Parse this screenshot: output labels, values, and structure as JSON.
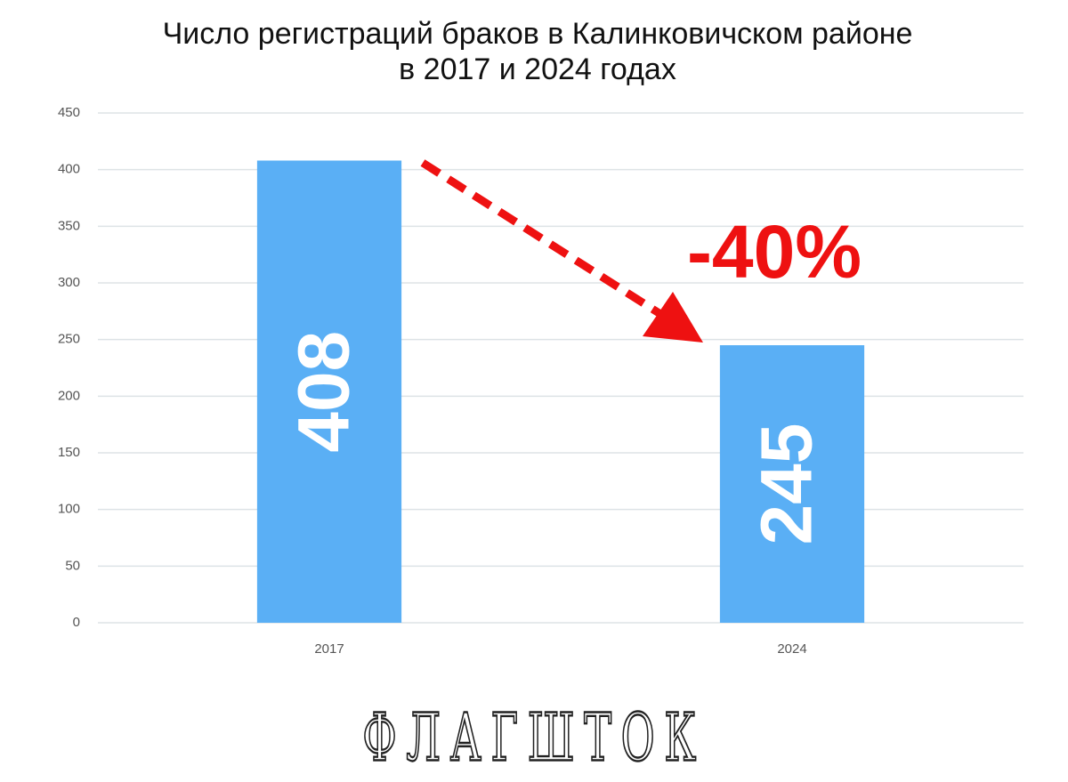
{
  "chart_data": {
    "type": "bar",
    "title": [
      "Число регистраций браков в Калинковичском районе",
      "в 2017 и 2024 годах"
    ],
    "categories": [
      "2017",
      "2024"
    ],
    "values": [
      408,
      245
    ],
    "color": "#5aaff5",
    "ylim": [
      0,
      450
    ],
    "yticks": [
      0,
      50,
      100,
      150,
      200,
      250,
      300,
      350,
      400,
      450
    ],
    "grid": true,
    "annotation": "-40%",
    "logo": "ФЛАГШТОК"
  }
}
